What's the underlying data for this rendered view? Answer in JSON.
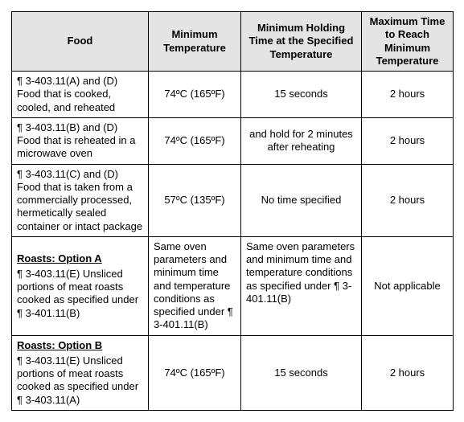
{
  "table": {
    "headers": {
      "food": "Food",
      "min_temp": "Minimum Temperature",
      "hold_time": "Minimum Holding Time at the Specified Temperature",
      "max_time": "Maximum Time to Reach Minimum Temperature"
    },
    "rows": [
      {
        "title": null,
        "food": "¶ 3-403.11(A) and (D) Food that is cooked, cooled, and reheated",
        "min_temp": "74ºC (165ºF)",
        "hold_time": "15 seconds",
        "max_time": "2 hours",
        "min_temp_align": "center",
        "hold_align": "center",
        "max_align": "center"
      },
      {
        "title": null,
        "food": "¶ 3-403.11(B) and (D) Food that is reheated in a microwave oven",
        "min_temp": "74ºC (165ºF)",
        "hold_time": "and hold for 2 minutes after reheating",
        "max_time": "2 hours",
        "min_temp_align": "center",
        "hold_align": "center",
        "max_align": "center"
      },
      {
        "title": null,
        "food": "¶ 3-403.11(C) and (D) Food that is taken from a commercially processed, hermetically sealed container or intact package",
        "min_temp": "57ºC (135ºF)",
        "hold_time": "No time specified",
        "max_time": "2 hours",
        "min_temp_align": "center",
        "hold_align": "center",
        "max_align": "center"
      },
      {
        "title": "Roasts: Option A",
        "food": "¶ 3-403.11(E) Unsliced portions of meat roasts cooked as specified under ¶ 3-401.11(B)",
        "min_temp": "Same oven parameters and minimum time and temperature conditions as specified under ¶ 3-401.11(B)",
        "hold_time": "Same oven parameters and minimum time and temperature conditions as specified under ¶ 3-401.11(B)",
        "max_time": "Not applicable",
        "min_temp_align": "left",
        "hold_align": "left",
        "max_align": "center"
      },
      {
        "title": "Roasts: Option B",
        "food": "¶ 3-403.11(E) Unsliced portions of meat roasts cooked as specified under ¶ 3-403.11(A)",
        "min_temp": "74ºC (165ºF)",
        "hold_time": "15 seconds",
        "max_time": "2 hours",
        "min_temp_align": "center",
        "hold_align": "center",
        "max_align": "center"
      }
    ]
  }
}
